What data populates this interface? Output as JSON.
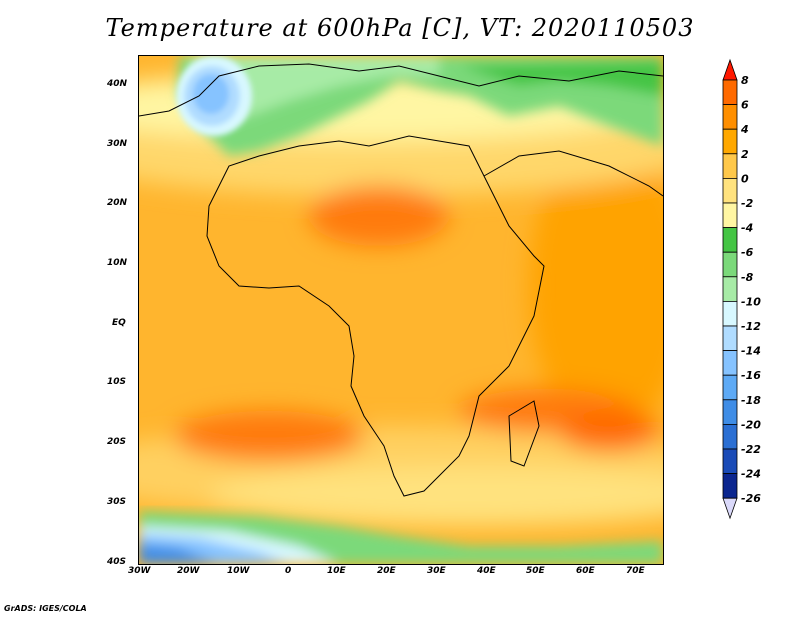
{
  "title": "Temperature at 600hPa [C], VT: 2020110503",
  "footer": "GrADS: IGES/COLA",
  "map": {
    "lat_ticks": [
      "40N",
      "30N",
      "20N",
      "10N",
      "EQ",
      "10S",
      "20S",
      "30S",
      "40S"
    ],
    "lon_ticks": [
      "30W",
      "20W",
      "10W",
      "0",
      "10E",
      "20E",
      "30E",
      "40E",
      "50E",
      "60E",
      "70E"
    ]
  },
  "colorbar": {
    "labels": [
      "8",
      "6",
      "4",
      "2",
      "0",
      "-2",
      "-4",
      "-6",
      "-8",
      "-10",
      "-12",
      "-14",
      "-16",
      "-18",
      "-20",
      "-22",
      "-24",
      "-26"
    ],
    "colors": [
      "#ff2d00",
      "#ff6a00",
      "#ff8f00",
      "#ffa800",
      "#ffc84a",
      "#ffe27e",
      "#fff6a3",
      "#44c544",
      "#7bd97a",
      "#a7eba6",
      "#d8f8ff",
      "#b0dcff",
      "#86c3ff",
      "#5eaaf5",
      "#3f8de6",
      "#2b6fd3",
      "#1a4bb7",
      "#0b268f",
      "#070b5c"
    ],
    "top_arrow_color": "#ff1800",
    "bottom_arrow_color": "#dad9fa"
  },
  "colors": {
    "background": "#ffffff",
    "border": "#000000",
    "land_outline": "#000000"
  }
}
